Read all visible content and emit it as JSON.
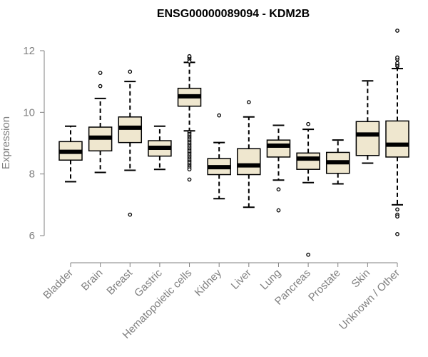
{
  "chart_data": {
    "type": "boxplot",
    "title": "ENSG00000089094 - KDM2B",
    "xlabel": "",
    "ylabel": "Expression",
    "ylim": [
      5.2,
      13.0
    ],
    "yticks": [
      6,
      8,
      10,
      12
    ],
    "categories": [
      "Bladder",
      "Brain",
      "Breast",
      "Gastric",
      "Hematopoietic cells",
      "Kidney",
      "Liver",
      "Lung",
      "Pancreas",
      "Prostate",
      "Skin",
      "Unknown / Other"
    ],
    "boxes": [
      {
        "name": "Bladder",
        "whisker_low": 7.75,
        "q1": 8.45,
        "median": 8.72,
        "q3": 9.05,
        "whisker_high": 9.55,
        "outliers": []
      },
      {
        "name": "Brain",
        "whisker_low": 8.05,
        "q1": 8.75,
        "median": 9.18,
        "q3": 9.52,
        "whisker_high": 10.45,
        "outliers": [
          10.85,
          11.28
        ]
      },
      {
        "name": "Breast",
        "whisker_low": 8.12,
        "q1": 9.02,
        "median": 9.5,
        "q3": 9.85,
        "whisker_high": 11.0,
        "outliers": [
          6.68,
          11.32
        ]
      },
      {
        "name": "Gastric",
        "whisker_low": 8.15,
        "q1": 8.58,
        "median": 8.85,
        "q3": 9.08,
        "whisker_high": 9.55,
        "outliers": []
      },
      {
        "name": "Hematopoietic cells",
        "whisker_low": 9.4,
        "q1": 10.2,
        "median": 10.52,
        "q3": 10.78,
        "whisker_high": 11.62,
        "outliers": [
          11.72,
          11.78,
          11.82,
          11.65,
          9.35,
          9.3,
          9.25,
          9.2,
          9.15,
          9.1,
          9.05,
          9.0,
          8.95,
          8.9,
          8.85,
          8.8,
          8.75,
          8.7,
          8.65,
          8.6,
          8.55,
          8.5,
          8.45,
          8.4,
          8.35,
          8.3,
          8.25,
          8.2,
          8.15,
          7.82
        ]
      },
      {
        "name": "Kidney",
        "whisker_low": 7.2,
        "q1": 7.98,
        "median": 8.22,
        "q3": 8.5,
        "whisker_high": 9.02,
        "outliers": [
          9.9
        ]
      },
      {
        "name": "Liver",
        "whisker_low": 6.92,
        "q1": 7.98,
        "median": 8.28,
        "q3": 8.82,
        "whisker_high": 9.85,
        "outliers": [
          10.33
        ]
      },
      {
        "name": "Lung",
        "whisker_low": 7.8,
        "q1": 8.55,
        "median": 8.92,
        "q3": 9.1,
        "whisker_high": 9.58,
        "outliers": [
          7.5,
          6.82
        ]
      },
      {
        "name": "Pancreas",
        "whisker_low": 7.72,
        "q1": 8.15,
        "median": 8.5,
        "q3": 8.68,
        "whisker_high": 9.45,
        "outliers": [
          9.62,
          5.38
        ]
      },
      {
        "name": "Prostate",
        "whisker_low": 7.68,
        "q1": 8.02,
        "median": 8.38,
        "q3": 8.7,
        "whisker_high": 9.1,
        "outliers": []
      },
      {
        "name": "Skin",
        "whisker_low": 8.35,
        "q1": 8.6,
        "median": 9.28,
        "q3": 9.7,
        "whisker_high": 11.02,
        "outliers": []
      },
      {
        "name": "Unknown / Other",
        "whisker_low": 7.0,
        "q1": 8.55,
        "median": 8.95,
        "q3": 9.72,
        "whisker_high": 11.42,
        "outliers": [
          11.5,
          11.55,
          11.6,
          11.72,
          11.78,
          12.65,
          6.85,
          6.68,
          6.62,
          6.05
        ]
      }
    ],
    "colors": {
      "box_fill": "#efe7cf",
      "box_stroke": "#000000",
      "median": "#000000",
      "axis": "#808080",
      "label": "#808080"
    }
  }
}
